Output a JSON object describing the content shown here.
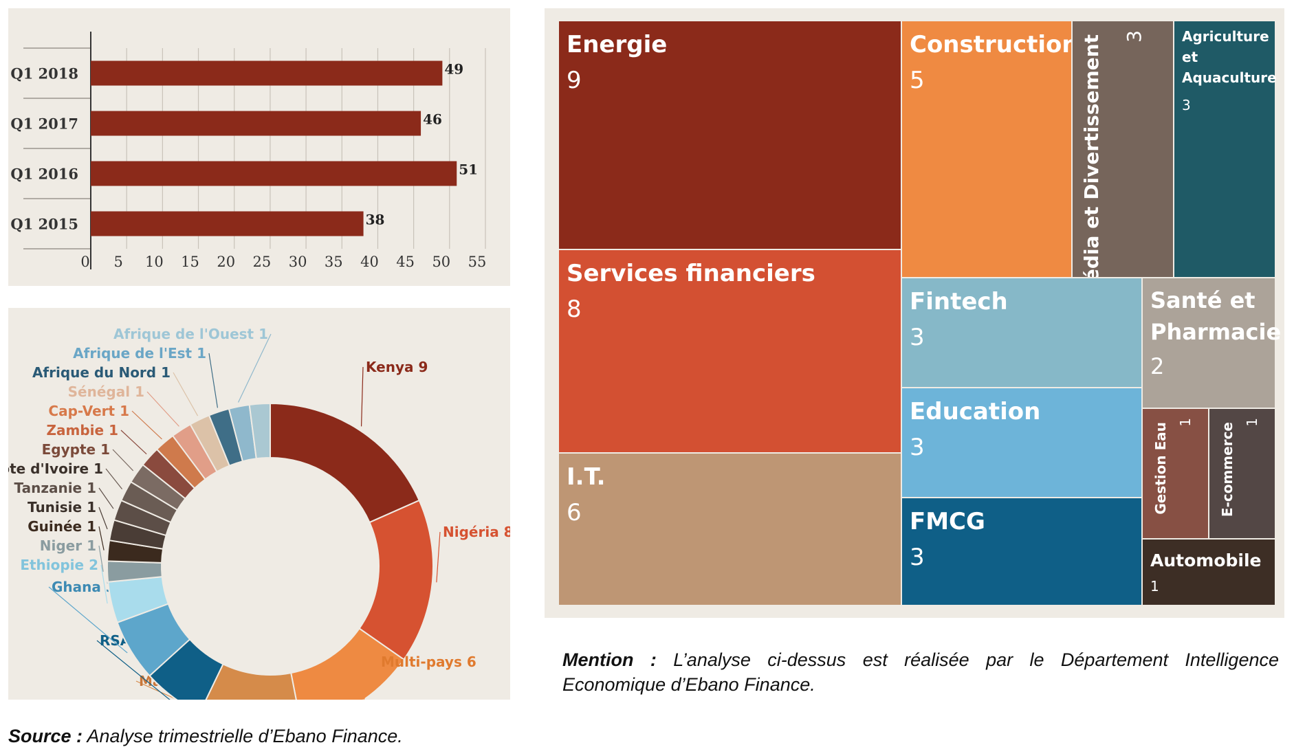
{
  "chart_data": [
    {
      "type": "bar",
      "orientation": "horizontal",
      "categories": [
        "Q1 2018",
        "Q1 2017",
        "Q1 2016",
        "Q1 2015"
      ],
      "values": [
        49,
        46,
        51,
        38
      ],
      "xlim": [
        0,
        55
      ],
      "xticks": [
        0,
        5,
        10,
        15,
        20,
        25,
        30,
        35,
        40,
        45,
        50,
        55
      ],
      "grid": true,
      "color": "#8b2a1a"
    },
    {
      "type": "pie",
      "style": "donut",
      "slices": [
        {
          "label": "Kenya",
          "value": 9,
          "color": "#8b2a1a",
          "label_color": "#8b2a1a"
        },
        {
          "label": "Nigéria",
          "value": 8,
          "color": "#d65231",
          "label_color": "#d65231"
        },
        {
          "label": "Multi-pays",
          "value": 6,
          "color": "#ee8a42",
          "label_color": "#e07a2e"
        },
        {
          "label": "Maroc",
          "value": 5,
          "color": "#d58b4a",
          "label_color": "#c9773a"
        },
        {
          "label": "RSA",
          "value": 3,
          "color": "#0f5f87",
          "label_color": "#0f5f87"
        },
        {
          "label": "Ghana",
          "value": 3,
          "color": "#5da6cb",
          "label_color": "#3d8ab3"
        },
        {
          "label": "Ethiopie",
          "value": 2,
          "color": "#a9dcec",
          "label_color": "#82c4dc"
        },
        {
          "label": "Niger",
          "value": 1,
          "color": "#8a9ca0",
          "label_color": "#8a9ca0"
        },
        {
          "label": "Guinée",
          "value": 1,
          "color": "#3b2a1e",
          "label_color": "#3b2a1e"
        },
        {
          "label": "Tunisie",
          "value": 1,
          "color": "#4a3d36",
          "label_color": "#3a302a"
        },
        {
          "label": "Tanzanie",
          "value": 1,
          "color": "#5c4e47",
          "label_color": "#5c4e47"
        },
        {
          "label": "Côte d'Ivoire",
          "value": 1,
          "color": "#6a5c54",
          "label_color": "#3a302a"
        },
        {
          "label": "Egypte",
          "value": 1,
          "color": "#7b6b63",
          "label_color": "#7b4a3a"
        },
        {
          "label": "Zambie",
          "value": 1,
          "color": "#8a4a3e",
          "label_color": "#c8643e"
        },
        {
          "label": "Cap-Vert",
          "value": 1,
          "color": "#cf7a4c",
          "label_color": "#d7794a"
        },
        {
          "label": "Sénégal",
          "value": 1,
          "color": "#e19e88",
          "label_color": "#dfb59a"
        },
        {
          "label": "Afrique du Nord",
          "value": 1,
          "color": "#dcc2a8",
          "label_color": "#2a5a76"
        },
        {
          "label": "Afrique de l'Est",
          "value": 1,
          "color": "#3f6e87",
          "label_color": "#6aa6c6"
        },
        {
          "label": "Afrique de l'Ouest",
          "value": 1,
          "color": "#8fb8cc",
          "label_color": "#9ec6d6"
        }
      ],
      "extra_segment_color": "#aac8d2"
    },
    {
      "type": "treemap",
      "items": [
        {
          "label": "Energie",
          "value": 9,
          "color": "#8b2a1a"
        },
        {
          "label": "Services financiers",
          "value": 8,
          "color": "#d35032"
        },
        {
          "label": "I.T.",
          "value": 6,
          "color": "#be9674"
        },
        {
          "label": "Construction",
          "value": 5,
          "color": "#ef8a42"
        },
        {
          "label": "Média et Divertissement",
          "value": 3,
          "color": "#76655b"
        },
        {
          "label": "Agriculture et Aquaculture",
          "value": 3,
          "color": "#1f5a66"
        },
        {
          "label": "Fintech",
          "value": 3,
          "color": "#86b8c8"
        },
        {
          "label": "Education",
          "value": 3,
          "color": "#6db4d9"
        },
        {
          "label": "FMCG",
          "value": 3,
          "color": "#0f5f87"
        },
        {
          "label": "Santé et Pharmacie",
          "value": 2,
          "color": "#aca399"
        },
        {
          "label": "Gestion Eau",
          "value": 1,
          "color": "#875044"
        },
        {
          "label": "E-commerce",
          "value": 1,
          "color": "#534745"
        },
        {
          "label": "Automobile",
          "value": 1,
          "color": "#3d2e25"
        }
      ]
    }
  ],
  "mention": {
    "label": "Mention :",
    "text": " L’analyse ci-dessus est réalisée par le Département Intelligence Economique d’Ebano Finance."
  },
  "source": {
    "label": "Source :",
    "text": " Analyse trimestrielle d’Ebano Finance."
  }
}
